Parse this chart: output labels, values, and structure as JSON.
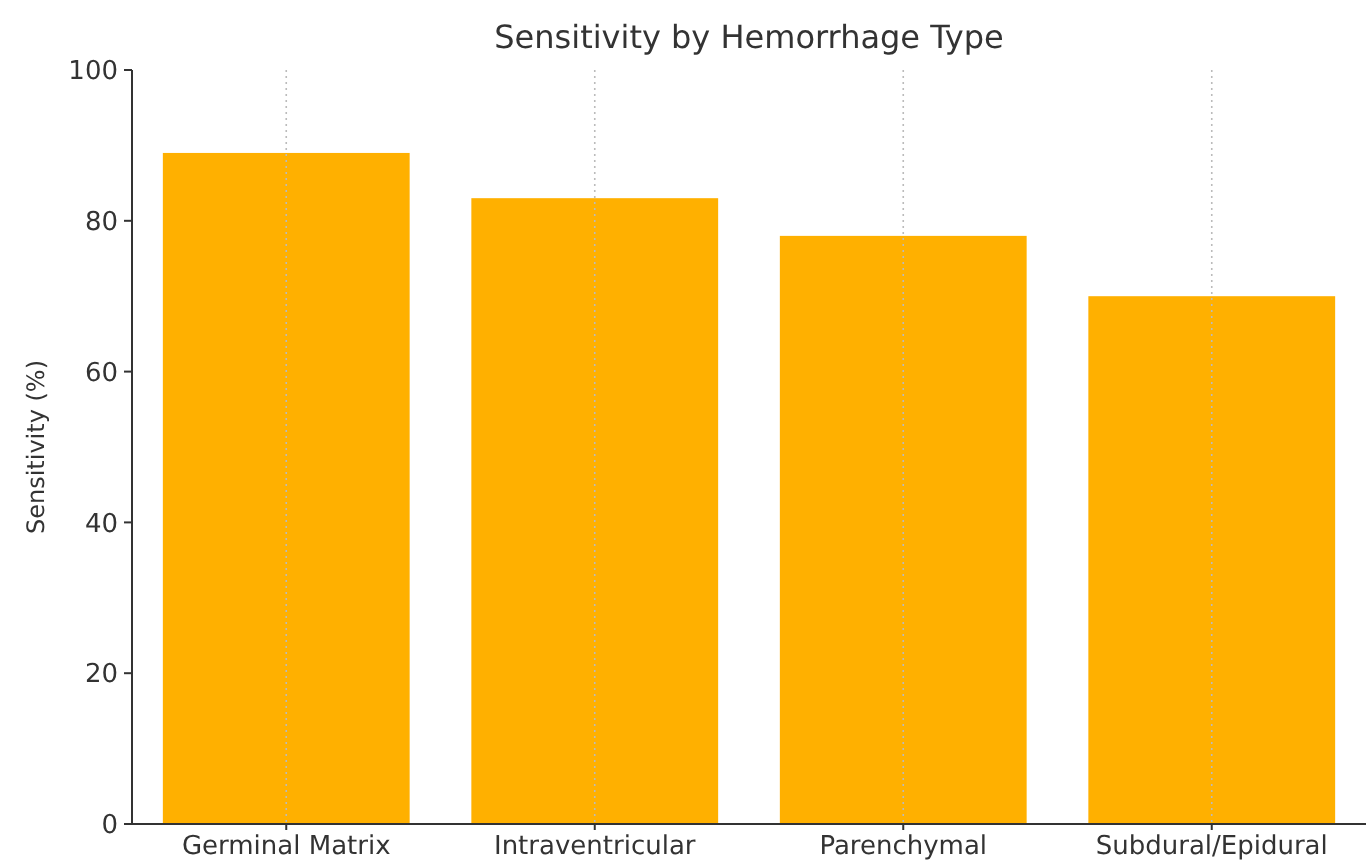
{
  "chart_data": {
    "type": "bar",
    "title": "Sensitivity by Hemorrhage Type",
    "ylabel": "Sensitivity (%)",
    "categories": [
      "Germinal Matrix",
      "Intraventricular",
      "Parenchymal",
      "Subdural/Epidural"
    ],
    "values": [
      89,
      83,
      78,
      70
    ],
    "color": "#ffb000",
    "ylim": [
      0,
      100
    ],
    "yticks": [
      0,
      20,
      40,
      60,
      80,
      100
    ],
    "grid": "x"
  }
}
